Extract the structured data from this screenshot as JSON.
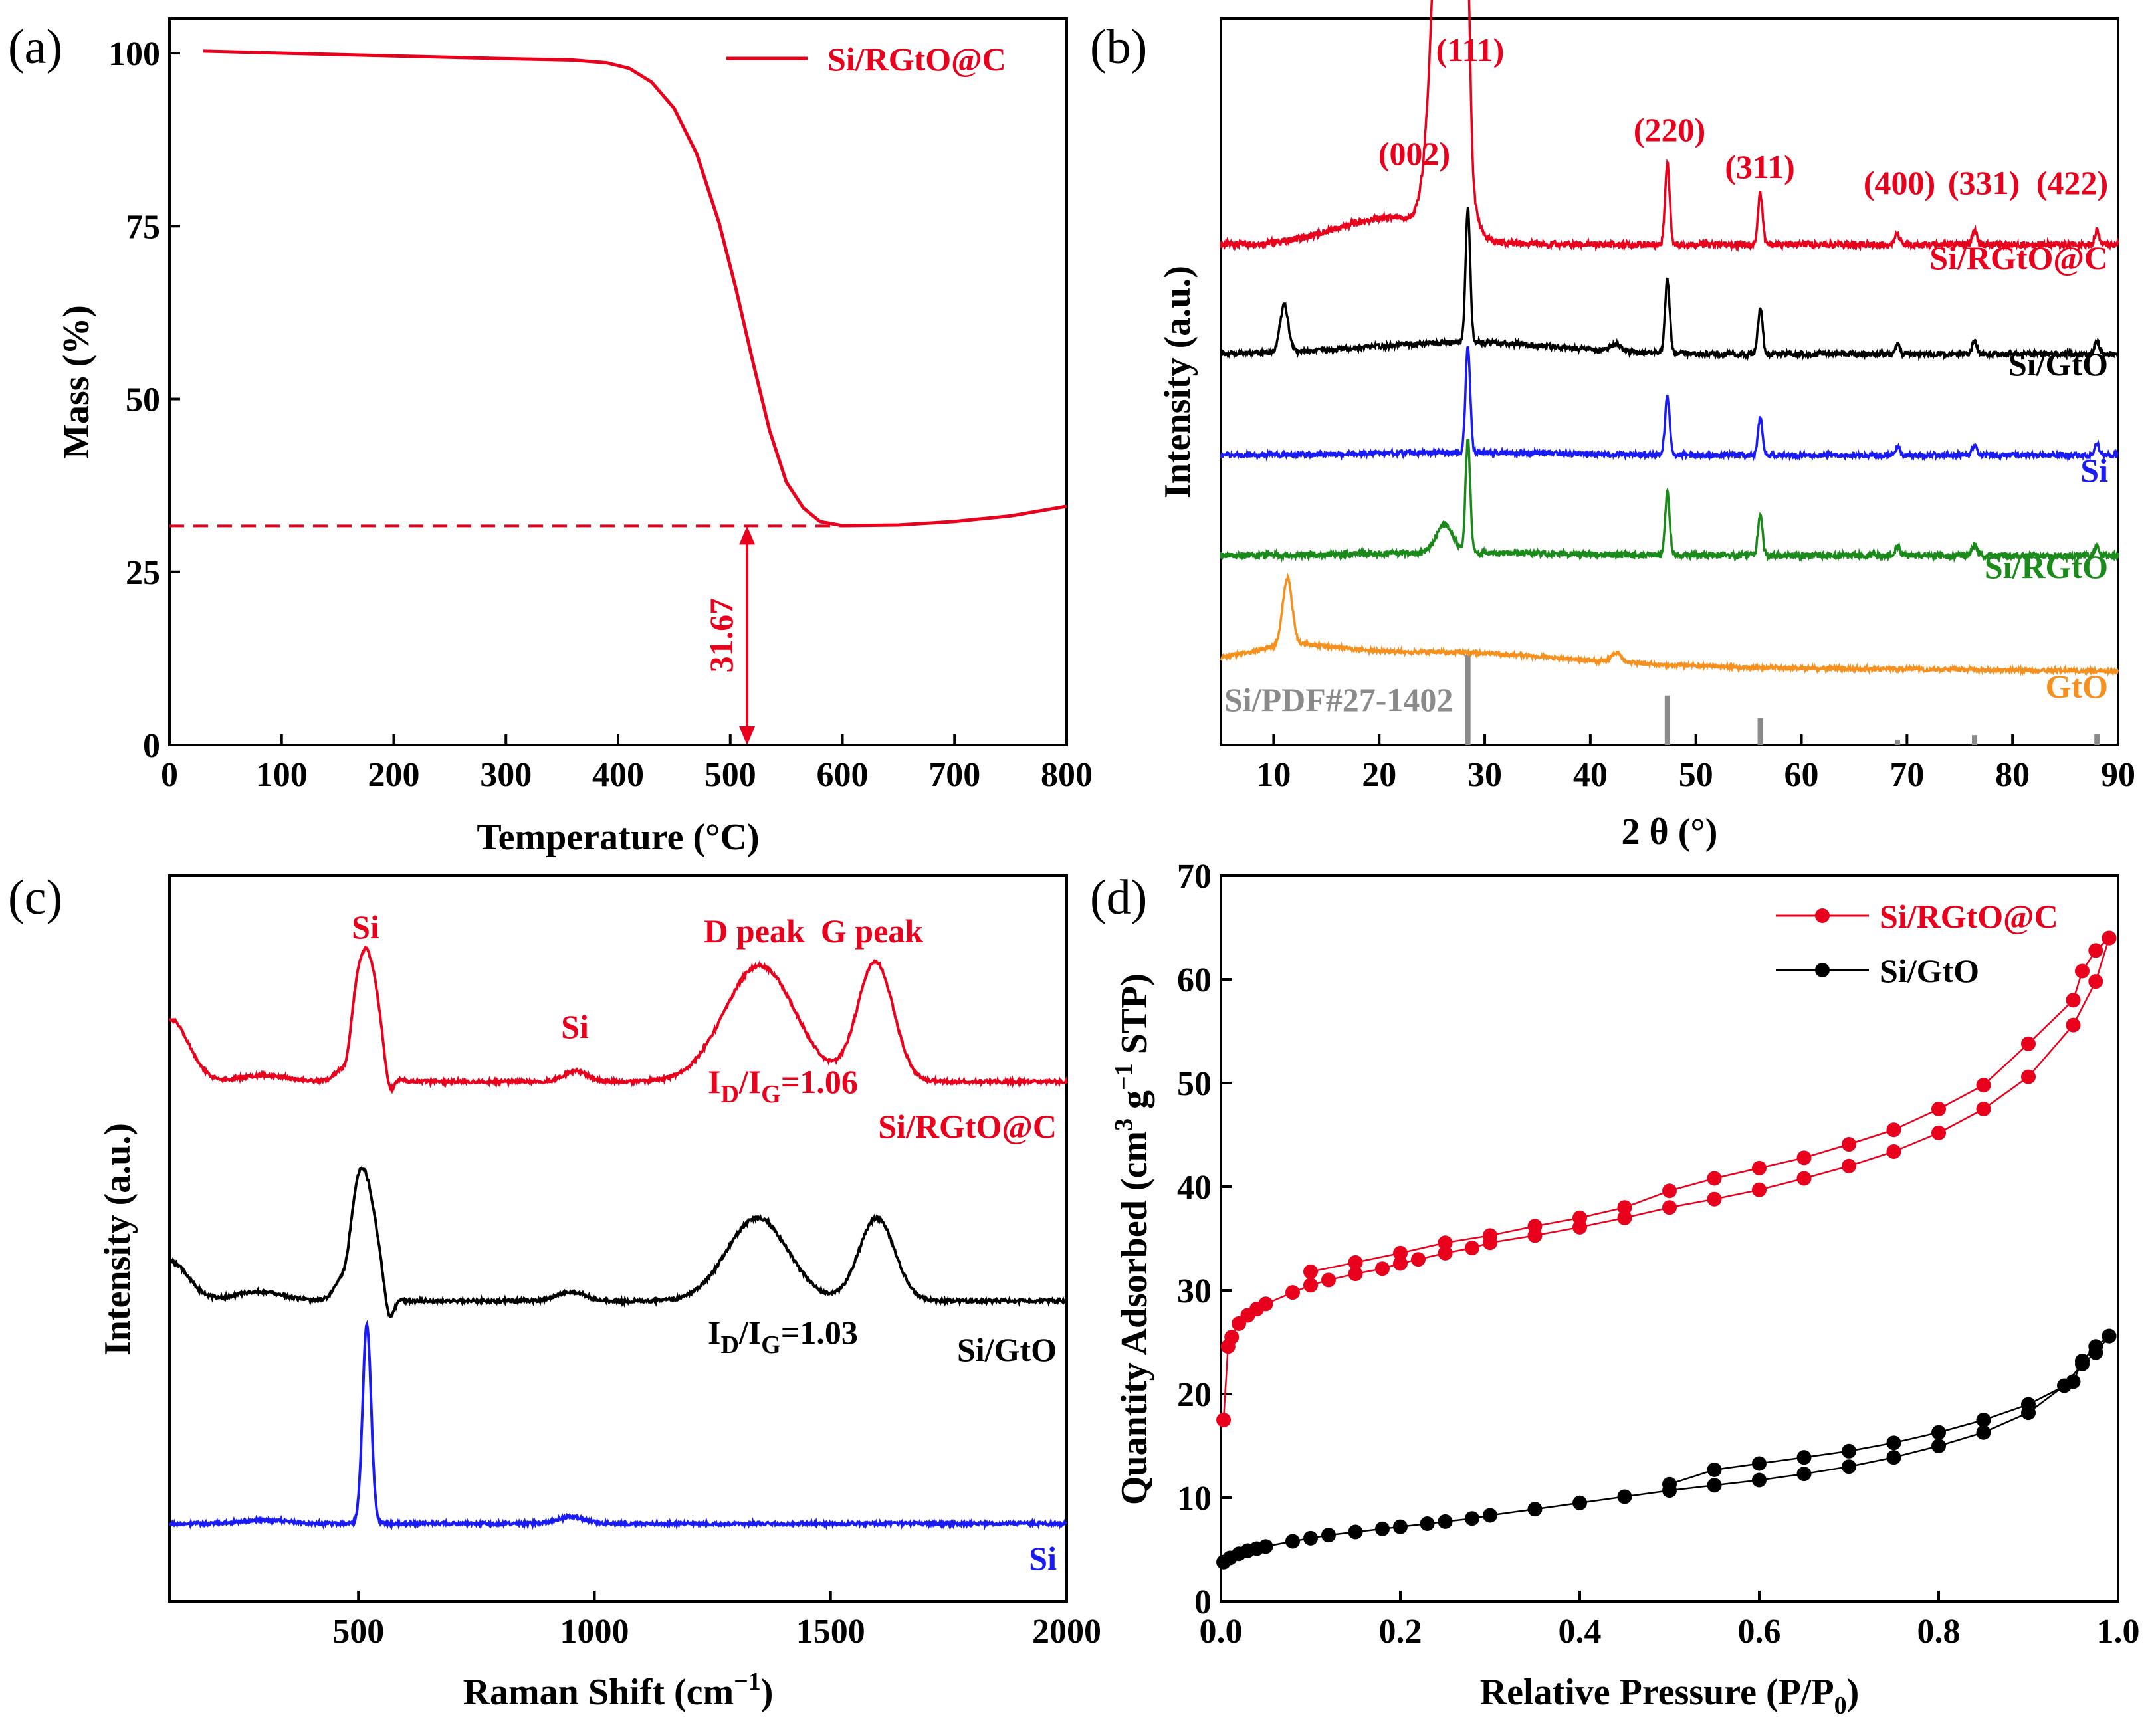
{
  "colors": {
    "red": "#e8001c",
    "black": "#000000",
    "blue": "#1a1af5",
    "green": "#1a8a1a",
    "orange": "#f5901e",
    "gray": "#8a8a8a"
  },
  "chart_data": [
    {
      "panel": "(a)",
      "type": "line",
      "xlabel": "Temperature (°C)",
      "ylabel": "Mass (%)",
      "xlim": [
        0,
        800
      ],
      "ylim": [
        0,
        105
      ],
      "xticks": [
        0,
        100,
        200,
        300,
        400,
        500,
        600,
        700,
        800
      ],
      "yticks": [
        0,
        25,
        50,
        75,
        100
      ],
      "series": [
        {
          "name": "Si/RGtO@C",
          "color": "#e8001c",
          "x": [
            30,
            100,
            200,
            300,
            360,
            390,
            410,
            430,
            450,
            470,
            490,
            505,
            520,
            535,
            550,
            565,
            580,
            600,
            650,
            700,
            750,
            800
          ],
          "y": [
            100.3,
            100.0,
            99.6,
            99.2,
            99.0,
            98.6,
            97.8,
            95.8,
            92.0,
            85.5,
            75.5,
            66.0,
            55.5,
            45.5,
            38.0,
            34.3,
            32.3,
            31.7,
            31.8,
            32.3,
            33.1,
            34.5
          ]
        }
      ],
      "annotations": {
        "residual_value": 31.67,
        "residual_label": "31.67",
        "arrow_x": 515
      },
      "legend": "top-right"
    },
    {
      "panel": "(b)",
      "type": "line",
      "xlabel": "2 θ (°)",
      "ylabel": "Intensity (a.u.)",
      "xlim": [
        5,
        90
      ],
      "xticks": [
        10,
        20,
        30,
        40,
        50,
        60,
        70,
        80,
        90
      ],
      "series": [
        {
          "name": "Si/RGtO@C",
          "color": "#e8001c"
        },
        {
          "name": "Si/GtO",
          "color": "#000000"
        },
        {
          "name": "Si",
          "color": "#1a1af5"
        },
        {
          "name": "Si/RGtO",
          "color": "#1a8a1a"
        },
        {
          "name": "GtO",
          "color": "#f5901e"
        }
      ],
      "reference": {
        "name": "Si/PDF#27-1402",
        "color": "#8a8a8a",
        "x": [
          28.4,
          47.3,
          56.1,
          69.1,
          76.4,
          88.0
        ],
        "relative_intensity": [
          1.0,
          0.55,
          0.3,
          0.06,
          0.11,
          0.12
        ]
      },
      "peak_labels": [
        {
          "text": "(002)",
          "x": 26.5
        },
        {
          "text": "(111)",
          "x": 28.4
        },
        {
          "text": "(220)",
          "x": 47.3
        },
        {
          "text": "(311)",
          "x": 56.1
        },
        {
          "text": "(400)",
          "x": 69.1
        },
        {
          "text": "(331)",
          "x": 76.4
        },
        {
          "text": "(422)",
          "x": 88.0
        }
      ]
    },
    {
      "panel": "(c)",
      "type": "line",
      "xlabel": "Raman Shift (cm−1)",
      "ylabel": "Intensity (a.u.)",
      "xlim": [
        100,
        2000
      ],
      "xticks": [
        500,
        1000,
        1500,
        2000
      ],
      "series": [
        {
          "name": "Si/RGtO@C",
          "color": "#e8001c",
          "ratio_label": "ID/IG=1.06",
          "ratio": 1.06
        },
        {
          "name": "Si/GtO",
          "color": "#000000",
          "ratio_label": "ID/IG=1.03",
          "ratio": 1.03
        },
        {
          "name": "Si",
          "color": "#1a1af5"
        }
      ],
      "peak_labels": [
        {
          "text": "Si",
          "x": 520
        },
        {
          "text": "Si",
          "x": 950
        },
        {
          "text": "D peak",
          "x": 1350
        },
        {
          "text": "G peak",
          "x": 1590
        }
      ]
    },
    {
      "panel": "(d)",
      "type": "scatter",
      "xlabel": "Relative Pressure (P/P0)",
      "ylabel": "Quantity Adsorbed (cm3 g−1 STP)",
      "xlim": [
        0.0,
        1.0
      ],
      "ylim": [
        0,
        70
      ],
      "xticks": [
        0.0,
        0.2,
        0.4,
        0.6,
        0.8,
        1.0
      ],
      "yticks": [
        0,
        10,
        20,
        30,
        40,
        50,
        60,
        70
      ],
      "legend": "top-right",
      "series": [
        {
          "name": "Si/RGtO@C",
          "color": "#e8001c",
          "adsorption": {
            "x": [
              0.003,
              0.008,
              0.012,
              0.02,
              0.03,
              0.04,
              0.05,
              0.08,
              0.1,
              0.12,
              0.15,
              0.18,
              0.2,
              0.22,
              0.25,
              0.28,
              0.3,
              0.35,
              0.4,
              0.45,
              0.5,
              0.55,
              0.6,
              0.65,
              0.7,
              0.75,
              0.8,
              0.85,
              0.9,
              0.95,
              0.975,
              0.99
            ],
            "y": [
              17.5,
              24.6,
              25.5,
              26.8,
              27.6,
              28.2,
              28.7,
              29.8,
              30.5,
              31.0,
              31.6,
              32.1,
              32.6,
              33.0,
              33.6,
              34.1,
              34.6,
              35.3,
              36.1,
              37.0,
              38.0,
              38.8,
              39.7,
              40.8,
              42.0,
              43.4,
              45.2,
              47.5,
              50.6,
              55.6,
              59.8,
              64.0
            ]
          },
          "desorption": {
            "x": [
              0.99,
              0.975,
              0.96,
              0.95,
              0.9,
              0.85,
              0.8,
              0.75,
              0.7,
              0.65,
              0.6,
              0.55,
              0.5,
              0.45,
              0.4,
              0.35,
              0.3,
              0.25,
              0.2,
              0.15,
              0.1
            ],
            "y": [
              64.0,
              62.8,
              60.8,
              58.0,
              53.8,
              49.8,
              47.5,
              45.5,
              44.1,
              42.8,
              41.8,
              40.8,
              39.6,
              38.0,
              37.0,
              36.2,
              35.3,
              34.6,
              33.6,
              32.7,
              31.8
            ]
          }
        },
        {
          "name": "Si/GtO",
          "color": "#000000",
          "adsorption": {
            "x": [
              0.003,
              0.01,
              0.02,
              0.03,
              0.04,
              0.05,
              0.08,
              0.1,
              0.12,
              0.15,
              0.18,
              0.2,
              0.23,
              0.25,
              0.28,
              0.3,
              0.35,
              0.4,
              0.45,
              0.5,
              0.55,
              0.6,
              0.65,
              0.7,
              0.75,
              0.8,
              0.85,
              0.9,
              0.94,
              0.96,
              0.975,
              0.99
            ],
            "y": [
              3.8,
              4.2,
              4.6,
              4.9,
              5.1,
              5.3,
              5.8,
              6.1,
              6.4,
              6.7,
              7.0,
              7.2,
              7.5,
              7.7,
              8.0,
              8.3,
              8.9,
              9.5,
              10.1,
              10.7,
              11.2,
              11.7,
              12.3,
              13.0,
              13.9,
              15.0,
              16.3,
              18.2,
              20.8,
              22.9,
              24.0,
              25.6
            ]
          },
          "desorption": {
            "x": [
              0.99,
              0.975,
              0.96,
              0.95,
              0.9,
              0.85,
              0.8,
              0.75,
              0.7,
              0.65,
              0.6,
              0.55,
              0.5
            ],
            "y": [
              25.6,
              24.6,
              23.2,
              21.2,
              19.0,
              17.5,
              16.3,
              15.3,
              14.5,
              13.9,
              13.3,
              12.7,
              11.3
            ]
          }
        }
      ]
    }
  ]
}
